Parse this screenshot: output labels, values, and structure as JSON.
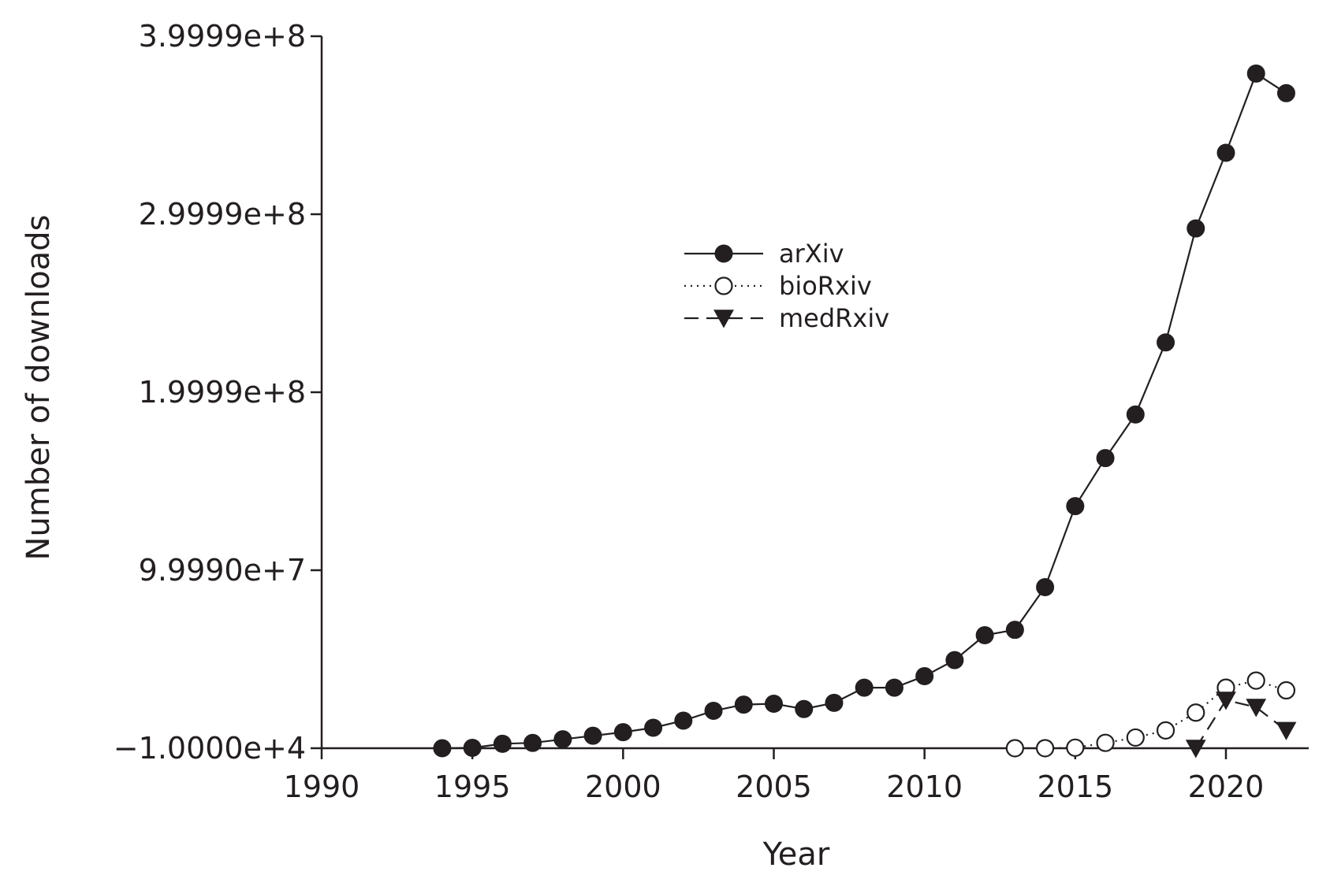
{
  "chart_data": {
    "type": "line",
    "xlabel": "Year",
    "ylabel": "Number of downloads",
    "xlim": [
      1990,
      2023
    ],
    "ylim": [
      -10000,
      399990000
    ],
    "x_ticks": [
      1990,
      1995,
      2000,
      2005,
      2010,
      2015,
      2020
    ],
    "y_ticks": [
      {
        "value": -10000,
        "label": "−1.0000e+4"
      },
      {
        "value": 99990000,
        "label": "9.9990e+7"
      },
      {
        "value": 199990000,
        "label": "1.9999e+8"
      },
      {
        "value": 299990000,
        "label": "2.9999e+8"
      },
      {
        "value": 399990000,
        "label": "3.9999e+8"
      }
    ],
    "grid": false,
    "legend_position": "upper-center",
    "series": [
      {
        "name": "arXiv",
        "marker": "filled-circle",
        "line": "solid",
        "x": [
          1994,
          1995,
          1996,
          1997,
          1998,
          1999,
          2000,
          2001,
          2002,
          2003,
          2004,
          2005,
          2006,
          2007,
          2008,
          2009,
          2010,
          2011,
          2012,
          2013,
          2014,
          2015,
          2016,
          2017,
          2018,
          2019,
          2020,
          2021,
          2022
        ],
        "y": [
          0,
          200000,
          2500000,
          3000000,
          5000000,
          7000000,
          9000000,
          11500000,
          15500000,
          21000000,
          24500000,
          25000000,
          22000000,
          25500000,
          34000000,
          34000000,
          40500000,
          49500000,
          63500000,
          66500000,
          90500000,
          136000000,
          163000000,
          187500000,
          228000000,
          292000000,
          334500000,
          379000000,
          368000000
        ]
      },
      {
        "name": "bioRxiv",
        "marker": "open-circle",
        "line": "dotted",
        "x": [
          2013,
          2014,
          2015,
          2016,
          2017,
          2018,
          2019,
          2020,
          2021,
          2022
        ],
        "y": [
          0,
          0,
          300000,
          3000000,
          6000000,
          10000000,
          20000000,
          34000000,
          38000000,
          32500000
        ]
      },
      {
        "name": "medRxiv",
        "marker": "filled-triangle-down",
        "line": "dashed",
        "x": [
          2019,
          2020,
          2021,
          2022
        ],
        "y": [
          0,
          27000000,
          23000000,
          10000000
        ]
      }
    ]
  }
}
